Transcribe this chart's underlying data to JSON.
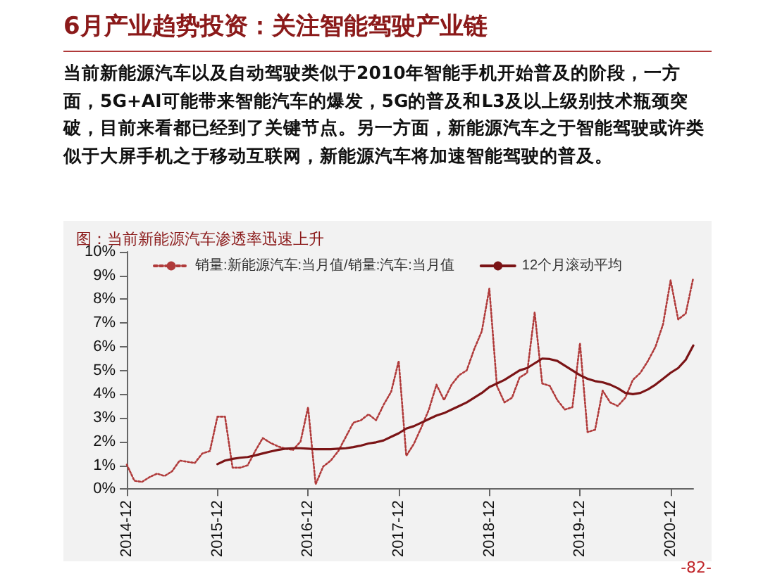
{
  "chart_data": {
    "type": "line",
    "title": "6月产业趋势投资：关注智能驾驶产业链",
    "subtitle": "图：当前新能源汽车渗透率迅速上升",
    "annotations": [
      "当前新能源汽车以及自动驾驶类似于2010年智能手机开始普及的阶段，一方面，5G+AI可能带来智能汽车的爆发，5G的普及和L3及以上级别技术瓶颈突破，目前来看都已经到了关键节点。另一方面，新能源汽车之于智能驾驶或许类似于大屏手机之于移动互联网，新能源汽车将加速智能驾驶的普及。",
      "-82-"
    ],
    "categories": [
      "2014-12",
      null,
      null,
      null,
      null,
      null,
      null,
      null,
      null,
      null,
      null,
      null,
      "2015-12",
      null,
      null,
      null,
      null,
      null,
      null,
      null,
      null,
      null,
      null,
      null,
      "2016-12",
      null,
      null,
      null,
      null,
      null,
      null,
      null,
      null,
      null,
      null,
      null,
      "2017-12",
      null,
      null,
      null,
      null,
      null,
      null,
      null,
      null,
      null,
      null,
      null,
      "2018-12",
      null,
      null,
      null,
      null,
      null,
      null,
      null,
      null,
      null,
      null,
      null,
      "2019-12",
      null,
      null,
      null,
      null,
      null,
      null,
      null,
      null,
      null,
      null,
      null,
      "2020-12",
      null,
      null,
      null
    ],
    "series": [
      {
        "name": "销量:新能源汽车:当月值/销量:汽车:当月值",
        "color": "#b03a3a",
        "line_style": "dotted",
        "values": [
          1.03,
          0.35,
          0.3,
          0.5,
          0.65,
          0.55,
          0.75,
          1.2,
          1.15,
          1.1,
          1.5,
          1.6,
          3.05,
          3.05,
          0.9,
          0.9,
          1.0,
          1.6,
          2.15,
          1.95,
          1.8,
          1.7,
          1.65,
          2.0,
          3.45,
          0.2,
          0.95,
          1.2,
          1.6,
          2.2,
          2.8,
          2.9,
          3.15,
          2.9,
          3.55,
          4.1,
          5.4,
          1.4,
          1.9,
          2.6,
          3.35,
          4.4,
          3.75,
          4.4,
          4.8,
          5.0,
          5.9,
          6.65,
          8.45,
          4.35,
          3.65,
          3.85,
          4.7,
          4.9,
          7.45,
          4.45,
          4.35,
          3.75,
          3.35,
          3.45,
          6.15,
          2.4,
          2.5,
          4.15,
          3.65,
          3.5,
          3.85,
          4.6,
          4.9,
          5.4,
          6.0,
          6.95,
          8.8,
          7.15,
          7.4,
          8.9
        ]
      },
      {
        "name": "12个月滚动平均",
        "color": "#7b1416",
        "line_style": "solid",
        "values": [
          null,
          null,
          null,
          null,
          null,
          null,
          null,
          null,
          null,
          null,
          null,
          null,
          1.05,
          1.2,
          1.27,
          1.32,
          1.35,
          1.42,
          1.5,
          1.58,
          1.65,
          1.7,
          1.72,
          1.72,
          1.7,
          1.68,
          1.68,
          1.68,
          1.7,
          1.72,
          1.77,
          1.83,
          1.92,
          1.97,
          2.05,
          2.2,
          2.35,
          2.55,
          2.65,
          2.8,
          2.95,
          3.1,
          3.2,
          3.35,
          3.5,
          3.65,
          3.85,
          4.05,
          4.3,
          4.45,
          4.6,
          4.8,
          5.0,
          5.1,
          5.3,
          5.5,
          5.48,
          5.4,
          5.2,
          5.0,
          4.8,
          4.65,
          4.55,
          4.5,
          4.4,
          4.25,
          4.05,
          4.0,
          4.05,
          4.2,
          4.4,
          4.65,
          4.9,
          5.1,
          5.45,
          6.05
        ]
      }
    ],
    "ylim": [
      0,
      10
    ],
    "yticks": [
      {
        "value": 0,
        "label": "0%"
      },
      {
        "value": 1,
        "label": "1%"
      },
      {
        "value": 2,
        "label": "2%"
      },
      {
        "value": 3,
        "label": "3%"
      },
      {
        "value": 4,
        "label": "4%"
      },
      {
        "value": 5,
        "label": "5%"
      },
      {
        "value": 6,
        "label": "6%"
      },
      {
        "value": 7,
        "label": "7%"
      },
      {
        "value": 8,
        "label": "8%"
      },
      {
        "value": 9,
        "label": "9%"
      },
      {
        "value": 10,
        "label": "10%"
      }
    ],
    "grid": false,
    "legend": "top",
    "marker": "none"
  }
}
